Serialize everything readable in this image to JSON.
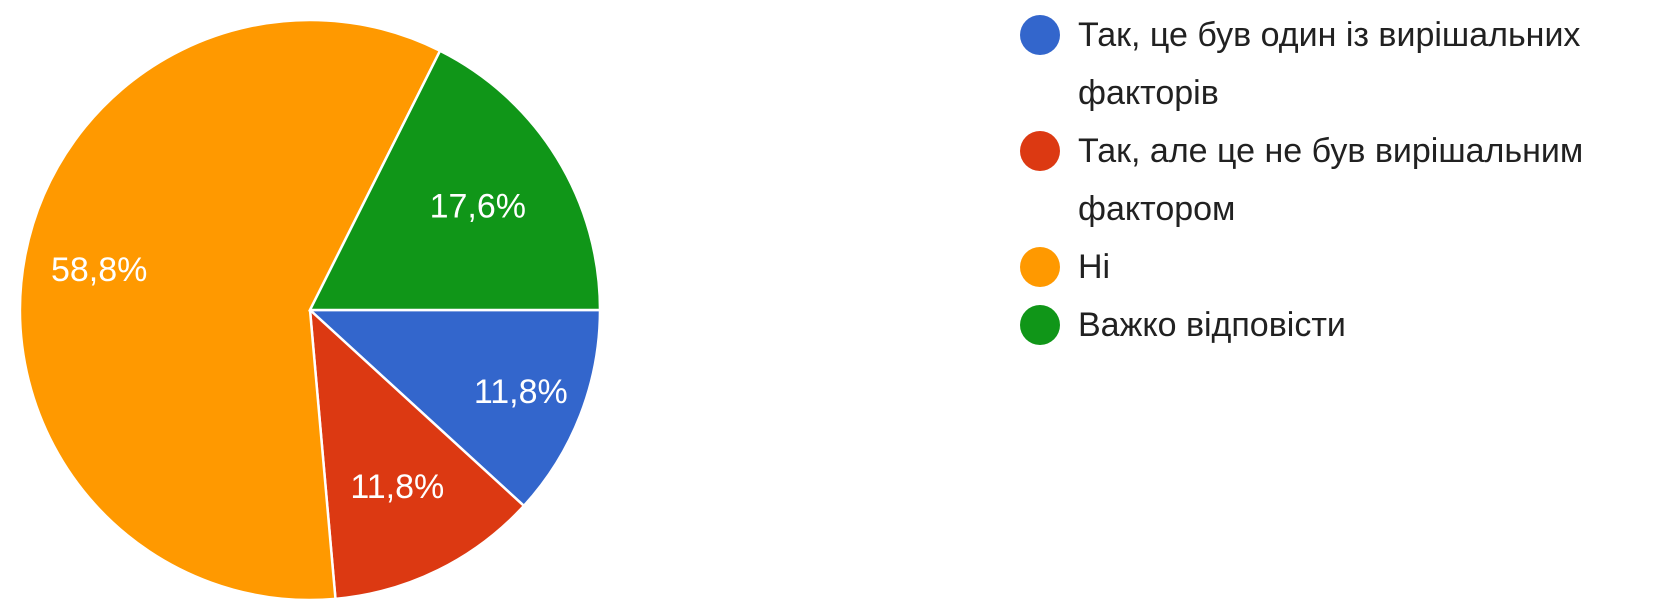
{
  "chart_data": {
    "type": "pie",
    "slices": [
      {
        "label": "Так, це був один із вирішальних факторів",
        "value": 11.8,
        "display": "11,8%",
        "color": "#3366cc"
      },
      {
        "label": "Так, але це не був вирішальним фактором",
        "value": 11.8,
        "display": "11,8%",
        "color": "#dc3912"
      },
      {
        "label": "Ні",
        "value": 58.8,
        "display": "58,8%",
        "color": "#ff9900"
      },
      {
        "label": "Важко відповісти",
        "value": 17.6,
        "display": "17,6%",
        "color": "#109618"
      }
    ],
    "legend_position": "right",
    "start": "3 o'clock, clockwise"
  }
}
